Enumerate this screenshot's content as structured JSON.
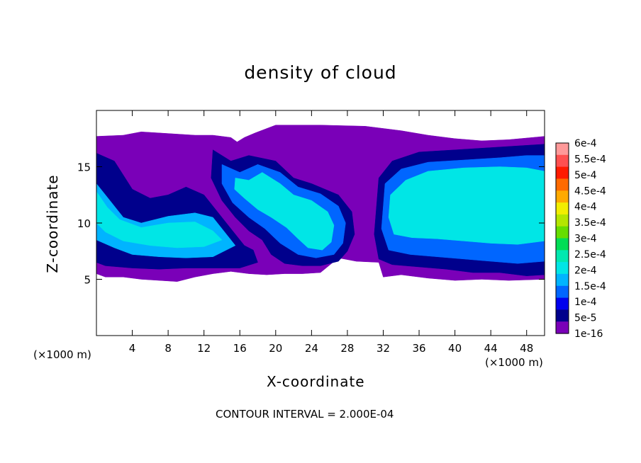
{
  "chart_data": {
    "type": "heatmap",
    "title": "density of cloud",
    "xlabel": "X-coordinate",
    "ylabel": "Z-coordinate",
    "x_unit_left": "(×1000 m)",
    "x_unit_right": "(×1000 m)",
    "footer": "CONTOUR INTERVAL = 2.000E-04",
    "xlim": [
      0,
      50
    ],
    "ylim": [
      0,
      20
    ],
    "x_ticks": [
      4,
      8,
      12,
      16,
      20,
      24,
      28,
      32,
      36,
      40,
      44,
      48
    ],
    "y_ticks": [
      5,
      10,
      15
    ],
    "colorbar": {
      "labels": [
        "6e-4",
        "5.5e-4",
        "5e-4",
        "4.5e-4",
        "4e-4",
        "3.5e-4",
        "3e-4",
        "2.5e-4",
        "2e-4",
        "1.5e-4",
        "1e-4",
        "5e-5",
        "1e-16"
      ],
      "colors": [
        "#ff9999",
        "#ff5050",
        "#ff1a00",
        "#ff6a00",
        "#ffaa00",
        "#f2ee00",
        "#b4e600",
        "#66dd00",
        "#00dd55",
        "#00e8b0",
        "#00e6e6",
        "#00b4ff",
        "#0066ff",
        "#0000ee",
        "#00008c",
        "#7a00b8"
      ]
    },
    "regions": [
      {
        "name": "cloud-envelope",
        "level": "1e-16",
        "color": "#7a00b8",
        "points": [
          [
            0,
            17.7
          ],
          [
            3,
            17.8
          ],
          [
            5,
            18.1
          ],
          [
            7,
            18.0
          ],
          [
            9,
            17.9
          ],
          [
            11,
            17.8
          ],
          [
            13,
            17.8
          ],
          [
            15,
            17.6
          ],
          [
            15.7,
            17.2
          ],
          [
            16.5,
            17.6
          ],
          [
            17.7,
            18.0
          ],
          [
            20,
            18.7
          ],
          [
            25,
            18.7
          ],
          [
            30,
            18.6
          ],
          [
            34,
            18.2
          ],
          [
            37,
            17.8
          ],
          [
            40,
            17.5
          ],
          [
            43,
            17.3
          ],
          [
            46,
            17.4
          ],
          [
            50,
            17.7
          ],
          [
            50,
            5.0
          ],
          [
            46,
            4.9
          ],
          [
            43,
            5.0
          ],
          [
            40,
            4.9
          ],
          [
            37,
            5.1
          ],
          [
            34,
            5.4
          ],
          [
            32,
            5.2
          ],
          [
            31.5,
            6.5
          ],
          [
            29,
            6.6
          ],
          [
            27,
            6.9
          ],
          [
            25,
            5.6
          ],
          [
            23,
            5.5
          ],
          [
            21,
            5.5
          ],
          [
            19,
            5.4
          ],
          [
            17,
            5.5
          ],
          [
            15,
            5.7
          ],
          [
            13,
            5.5
          ],
          [
            11,
            5.2
          ],
          [
            9,
            4.8
          ],
          [
            7,
            4.9
          ],
          [
            5,
            5.0
          ],
          [
            3,
            5.2
          ],
          [
            1,
            5.2
          ],
          [
            0,
            5.5
          ]
        ]
      },
      {
        "name": "left-cell-outer",
        "level": "5e-5",
        "color": "#00008c",
        "points": [
          [
            0,
            16.2
          ],
          [
            2,
            15.5
          ],
          [
            4,
            13.0
          ],
          [
            6,
            12.2
          ],
          [
            8,
            12.5
          ],
          [
            10,
            13.2
          ],
          [
            12,
            12.5
          ],
          [
            13.5,
            11.0
          ],
          [
            15,
            9.5
          ],
          [
            16.5,
            8.0
          ],
          [
            17.5,
            7.6
          ],
          [
            18,
            6.5
          ],
          [
            16,
            6.0
          ],
          [
            13,
            6.0
          ],
          [
            10,
            6.0
          ],
          [
            7,
            5.9
          ],
          [
            4,
            6.0
          ],
          [
            1,
            6.2
          ],
          [
            0,
            6.5
          ]
        ]
      },
      {
        "name": "left-cell-inner",
        "level": "1.5e-4",
        "color": "#00b4ff",
        "points": [
          [
            0,
            13.5
          ],
          [
            1.5,
            12.0
          ],
          [
            3,
            10.5
          ],
          [
            5,
            10.0
          ],
          [
            8,
            10.6
          ],
          [
            11,
            10.9
          ],
          [
            13,
            10.5
          ],
          [
            14.5,
            9.0
          ],
          [
            15.5,
            8.0
          ],
          [
            13,
            7.0
          ],
          [
            10,
            6.9
          ],
          [
            7,
            7.0
          ],
          [
            4,
            7.2
          ],
          [
            2,
            7.8
          ],
          [
            0,
            8.5
          ]
        ]
      },
      {
        "name": "left-cell-core",
        "level": "2e-4",
        "color": "#00e6e6",
        "points": [
          [
            0,
            12.8
          ],
          [
            1.2,
            11.4
          ],
          [
            2.6,
            10.3
          ],
          [
            5,
            9.6
          ],
          [
            8,
            10.0
          ],
          [
            11,
            10.1
          ],
          [
            13,
            9.3
          ],
          [
            14,
            8.5
          ],
          [
            12,
            7.9
          ],
          [
            9,
            7.8
          ],
          [
            6,
            8.0
          ],
          [
            3,
            8.4
          ],
          [
            1,
            9.2
          ],
          [
            0,
            10.0
          ]
        ]
      },
      {
        "name": "central-plume-outer",
        "level": "5e-5",
        "color": "#00008c",
        "points": [
          [
            13,
            16.5
          ],
          [
            15,
            15.5
          ],
          [
            17,
            16.0
          ],
          [
            20,
            15.5
          ],
          [
            22,
            14.0
          ],
          [
            24,
            13.5
          ],
          [
            27,
            12.5
          ],
          [
            28.5,
            11.0
          ],
          [
            28.8,
            9.0
          ],
          [
            28,
            7.5
          ],
          [
            27,
            6.6
          ],
          [
            25,
            6.2
          ],
          [
            23,
            6.2
          ],
          [
            21,
            6.4
          ],
          [
            19.5,
            7.2
          ],
          [
            18.5,
            8.5
          ],
          [
            17,
            9.3
          ],
          [
            15.5,
            10.5
          ],
          [
            14,
            12.0
          ],
          [
            12.8,
            14.0
          ]
        ]
      },
      {
        "name": "central-plume-mid",
        "level": "1e-4",
        "color": "#0066ff",
        "points": [
          [
            14,
            15.2
          ],
          [
            16,
            14.5
          ],
          [
            18,
            15.2
          ],
          [
            20.5,
            14.5
          ],
          [
            22.5,
            13.2
          ],
          [
            25,
            12.6
          ],
          [
            27,
            11.5
          ],
          [
            27.8,
            10.0
          ],
          [
            27.5,
            8.2
          ],
          [
            26.5,
            7.2
          ],
          [
            24.5,
            6.9
          ],
          [
            22.5,
            7.2
          ],
          [
            20.5,
            8.2
          ],
          [
            18.8,
            9.5
          ],
          [
            17,
            10.5
          ],
          [
            15.2,
            11.8
          ],
          [
            14,
            13.5
          ]
        ]
      },
      {
        "name": "central-plume-core",
        "level": "2e-4",
        "color": "#00e6e6",
        "points": [
          [
            15.5,
            14.0
          ],
          [
            17,
            13.8
          ],
          [
            18.5,
            14.5
          ],
          [
            20.5,
            13.5
          ],
          [
            22,
            12.5
          ],
          [
            24,
            12.0
          ],
          [
            25.8,
            11.0
          ],
          [
            26.5,
            9.8
          ],
          [
            26.2,
            8.3
          ],
          [
            25.2,
            7.6
          ],
          [
            23.6,
            7.8
          ],
          [
            22.5,
            8.6
          ],
          [
            21.2,
            9.6
          ],
          [
            19.5,
            10.5
          ],
          [
            18,
            11.2
          ],
          [
            16.5,
            12.2
          ],
          [
            15.4,
            13.0
          ]
        ]
      },
      {
        "name": "right-cell-outer",
        "level": "5e-5",
        "color": "#00008c",
        "points": [
          [
            31.5,
            14.0
          ],
          [
            33,
            15.5
          ],
          [
            36,
            16.3
          ],
          [
            40,
            16.5
          ],
          [
            44,
            16.7
          ],
          [
            48,
            16.9
          ],
          [
            50,
            17.0
          ],
          [
            50,
            5.4
          ],
          [
            48,
            5.3
          ],
          [
            45,
            5.6
          ],
          [
            42,
            5.6
          ],
          [
            39,
            5.9
          ],
          [
            36,
            6.1
          ],
          [
            33,
            6.3
          ],
          [
            31.5,
            6.8
          ],
          [
            31.0,
            9.0
          ]
        ]
      },
      {
        "name": "right-cell-mid",
        "level": "1e-4",
        "color": "#0066ff",
        "points": [
          [
            32.2,
            13.5
          ],
          [
            34,
            14.8
          ],
          [
            37,
            15.4
          ],
          [
            41,
            15.6
          ],
          [
            45,
            15.8
          ],
          [
            48,
            16.0
          ],
          [
            50,
            16.0
          ],
          [
            50,
            6.6
          ],
          [
            47,
            6.4
          ],
          [
            44,
            6.6
          ],
          [
            41,
            6.8
          ],
          [
            38,
            7.0
          ],
          [
            35,
            7.2
          ],
          [
            32.6,
            7.6
          ],
          [
            31.8,
            9.5
          ]
        ]
      },
      {
        "name": "right-cell-core",
        "level": "2e-4",
        "color": "#00e6e6",
        "points": [
          [
            32.8,
            12.5
          ],
          [
            34.5,
            13.8
          ],
          [
            37,
            14.6
          ],
          [
            41,
            14.9
          ],
          [
            45,
            15.0
          ],
          [
            48,
            14.9
          ],
          [
            50,
            14.6
          ],
          [
            50,
            8.4
          ],
          [
            47,
            8.1
          ],
          [
            44,
            8.2
          ],
          [
            41,
            8.4
          ],
          [
            38,
            8.6
          ],
          [
            35.2,
            8.7
          ],
          [
            33.2,
            9.0
          ],
          [
            32.6,
            10.5
          ]
        ]
      }
    ]
  }
}
